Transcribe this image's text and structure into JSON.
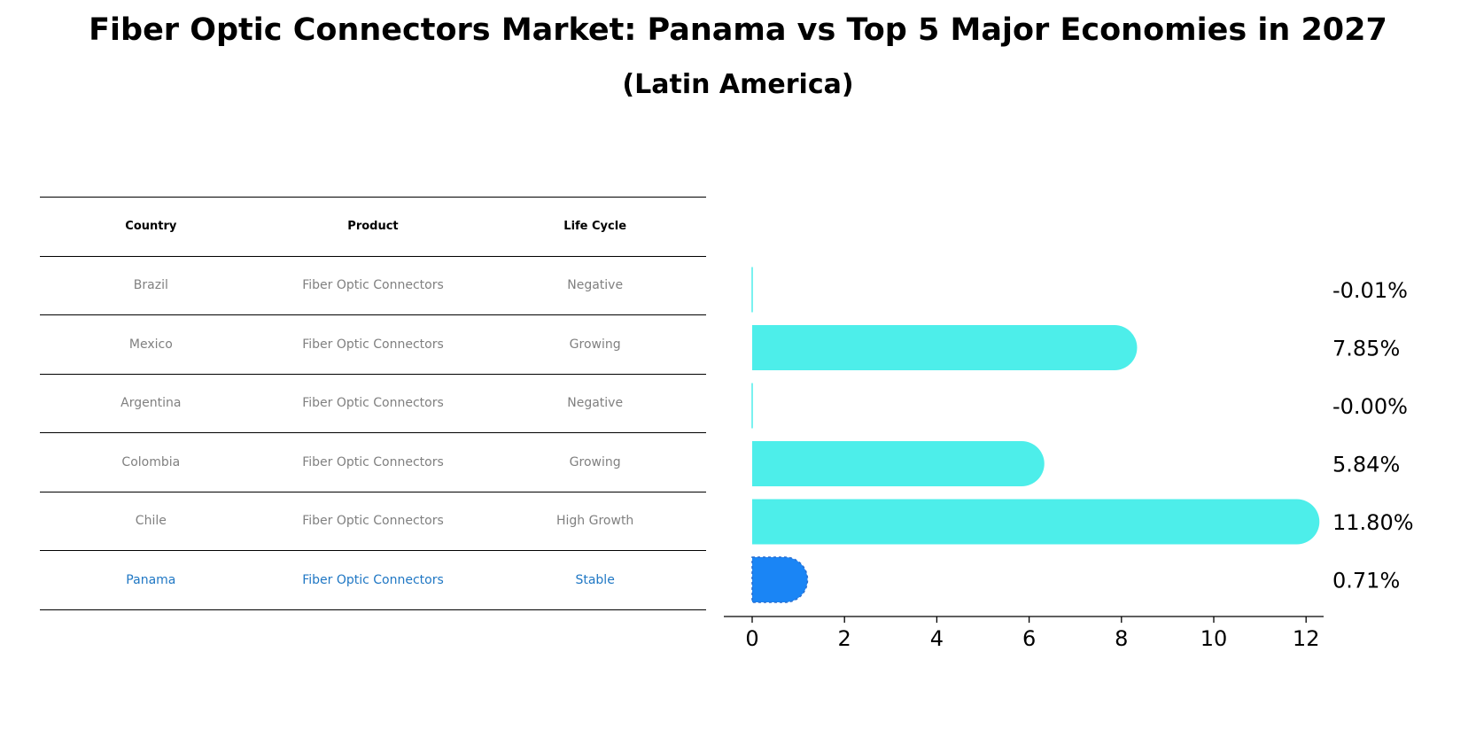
{
  "chart_data": {
    "type": "bar",
    "orientation": "horizontal",
    "title": "Fiber Optic Connectors Market: Panama vs Top 5 Major Economies in 2027",
    "subtitle": "(Latin America)",
    "categories": [
      "Brazil",
      "Mexico",
      "Argentina",
      "Colombia",
      "Chile",
      "Panama"
    ],
    "values": [
      -0.01,
      7.85,
      -0.0,
      5.84,
      11.8,
      0.71
    ],
    "value_labels": [
      "-0.01%",
      "7.85%",
      "-0.00%",
      "5.84%",
      "11.80%",
      "0.71%"
    ],
    "highlight": "Panama",
    "colors": {
      "bar": "#4deeea",
      "highlight": "#1a85f5"
    },
    "xlim": [
      -0.6,
      12.4
    ],
    "xticks": [
      0,
      2,
      4,
      6,
      8,
      10,
      12
    ],
    "xlabel": "",
    "ylabel": ""
  },
  "table": {
    "headers": [
      "Country",
      "Product",
      "Life Cycle"
    ],
    "rows": [
      [
        "Brazil",
        "Fiber Optic Connectors",
        "Negative"
      ],
      [
        "Mexico",
        "Fiber Optic Connectors",
        "Growing"
      ],
      [
        "Argentina",
        "Fiber Optic Connectors",
        "Negative"
      ],
      [
        "Colombia",
        "Fiber Optic Connectors",
        "Growing"
      ],
      [
        "Chile",
        "Fiber Optic Connectors",
        "High Growth"
      ],
      [
        "Panama",
        "Fiber Optic Connectors",
        "Stable"
      ]
    ],
    "highlight_row": 5
  }
}
